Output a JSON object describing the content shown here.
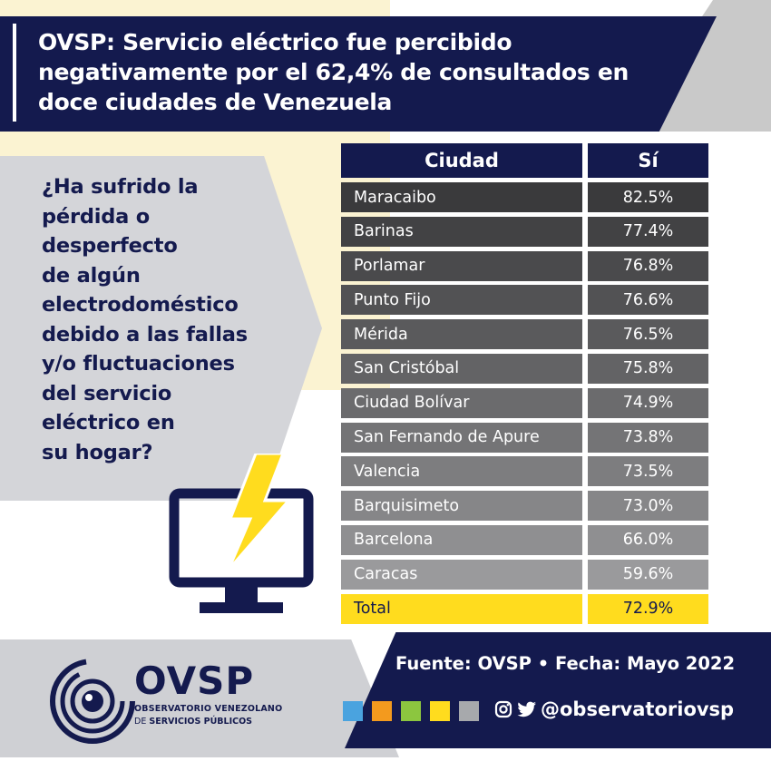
{
  "header": {
    "title": "OVSP: Servicio eléctrico fue percibido negativamente por el 62,4% de consultados en doce ciudades de Venezuela"
  },
  "question": {
    "text": "¿Ha sufrido la\n pérdida o\ndesperfecto\nde algún\nelectrodoméstico\ndebido a las fallas\ny/o fluctuaciones\ndel servicio\neléctrico en\nsu hogar?"
  },
  "table": {
    "headers": {
      "city": "Ciudad",
      "value": "Sí"
    },
    "rows": [
      {
        "city": "Maracaibo",
        "value": "82.5%",
        "color": "#3a3a3c"
      },
      {
        "city": "Barinas",
        "value": "77.4%",
        "color": "#424244"
      },
      {
        "city": "Porlamar",
        "value": "76.8%",
        "color": "#4a4a4c"
      },
      {
        "city": "Punto Fijo",
        "value": "76.6%",
        "color": "#525254"
      },
      {
        "city": "Mérida",
        "value": "76.5%",
        "color": "#5a5a5c"
      },
      {
        "city": "San Cristóbal",
        "value": "75.8%",
        "color": "#636365"
      },
      {
        "city": "Ciudad Bolívar",
        "value": "74.9%",
        "color": "#6b6b6d"
      },
      {
        "city": "San Fernando de Apure",
        "value": "73.8%",
        "color": "#747476"
      },
      {
        "city": "Valencia",
        "value": "73.5%",
        "color": "#7d7d7f"
      },
      {
        "city": "Barquisimeto",
        "value": "73.0%",
        "color": "#868688"
      },
      {
        "city": "Barcelona",
        "value": "66.0%",
        "color": "#8f8f91"
      },
      {
        "city": "Caracas",
        "value": "59.6%",
        "color": "#9a9a9c"
      }
    ],
    "total": {
      "city": "Total",
      "value": "72.9%",
      "color": "#ffdc1e"
    }
  },
  "footer": {
    "source": "Fuente: OVSP  •  Fecha: Mayo 2022",
    "social_handle": "@observatoriovsp",
    "social_icons": [
      "instagram-icon",
      "twitter-icon"
    ],
    "swatch_colors": [
      "#4aa3df",
      "#f39a1e",
      "#8cc63f",
      "#ffdc1e",
      "#a7a9ac"
    ]
  },
  "logo": {
    "name": "OVSP",
    "subtitle_line1": "OBSERVATORIO VENEZOLANO",
    "subtitle_line2_prefix": "DE",
    "subtitle_line2_bold": "SERVICIOS PÚBLICOS"
  },
  "colors": {
    "navy": "#141a4e",
    "yellow": "#ffdc1e",
    "cream": "#fbf3d2",
    "panel_grey": "#d4d5d9"
  }
}
